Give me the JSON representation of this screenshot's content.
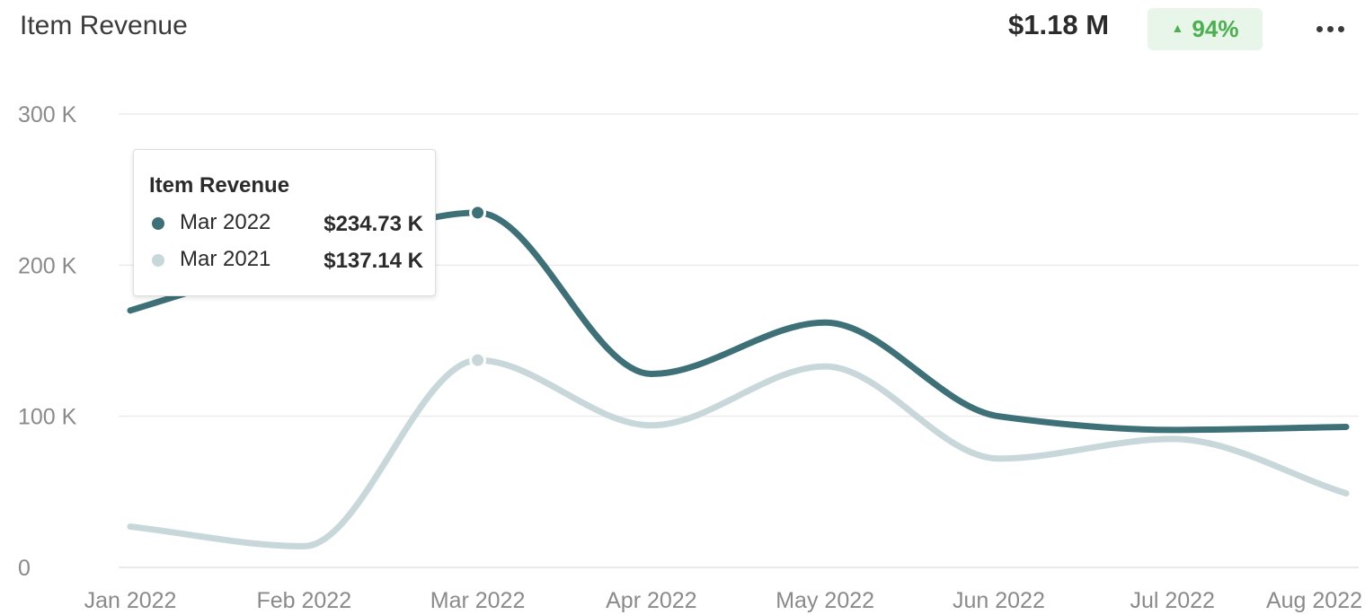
{
  "header": {
    "title": "Item Revenue",
    "total": "$1.18 M",
    "change": "94%",
    "change_icon": "triangle-up-icon",
    "change_color": "#4caf50",
    "more_icon": "more-horizontal-icon"
  },
  "tooltip": {
    "title": "Item Revenue",
    "rows": [
      {
        "label": "Mar 2022",
        "value": "$234.73 K",
        "color": "#3e7078"
      },
      {
        "label": "Mar 2021",
        "value": "$137.14 K",
        "color": "#c8d7d9"
      }
    ]
  },
  "chart_data": {
    "type": "line",
    "title": "Item Revenue",
    "xlabel": "",
    "ylabel": "",
    "categories": [
      "Jan 2022",
      "Feb 2022",
      "Mar 2022",
      "Apr 2022",
      "May 2022",
      "Jun 2022",
      "Jul 2022",
      "Aug 2022"
    ],
    "series": [
      {
        "period": "2022",
        "color": "#3e7078",
        "values": [
          170000,
          205000,
          234730,
          128000,
          162000,
          100000,
          91000,
          93000
        ]
      },
      {
        "period": "2021",
        "color": "#c8d7d9",
        "values": [
          27000,
          14000,
          137140,
          94000,
          133000,
          72000,
          85000,
          49000
        ]
      }
    ],
    "ylim": [
      0,
      300000
    ],
    "yticks": [
      {
        "value": 0,
        "label": "0"
      },
      {
        "value": 100000,
        "label": "100 K"
      },
      {
        "value": 200000,
        "label": "200 K"
      },
      {
        "value": 300000,
        "label": "300 K"
      }
    ],
    "grid": true,
    "highlight_index": 2
  }
}
